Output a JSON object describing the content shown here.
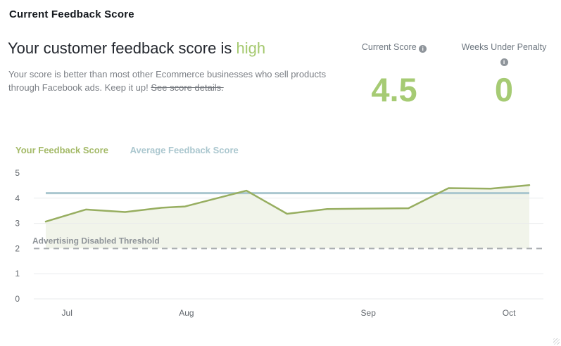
{
  "header": {
    "title": "Current Feedback Score",
    "headline_prefix": "Your customer feedback score is ",
    "headline_status": "high",
    "description_line1": "Your score is better than most other Ecommerce businesses who sell products",
    "description_line2": "through Facebook ads. Keep it up!",
    "details_link": "See score details."
  },
  "stats": [
    {
      "label": "Current Score",
      "value": "4.5"
    },
    {
      "label": "Weeks Under Penalty",
      "value": "0"
    }
  ],
  "icons": {
    "info_glyph": "i"
  },
  "legend": [
    {
      "label": "Your Feedback Score",
      "color": "#a4ba68"
    },
    {
      "label": "Average Feedback Score",
      "color": "#abc7cf"
    }
  ],
  "colors": {
    "accent_green": "#a6cb74",
    "line_green": "#97ae60",
    "area_fill": "rgba(150,173,90,0.13)",
    "line_blue": "#aac7cf",
    "threshold_grey": "#a8acb0",
    "grid_grey": "#e9ebed"
  },
  "chart_data": {
    "type": "line",
    "title": "",
    "xlabel": "",
    "ylabel": "",
    "ylim": [
      0,
      5
    ],
    "y_ticks": [
      5,
      4,
      3,
      2,
      1,
      0
    ],
    "grid_y": [
      4,
      3,
      1,
      0
    ],
    "x_ticks": [
      {
        "label": "Jul",
        "pos": 0.044
      },
      {
        "label": "Aug",
        "pos": 0.291
      },
      {
        "label": "Sep",
        "pos": 0.667
      },
      {
        "label": "Oct",
        "pos": 0.958
      }
    ],
    "legend_position": "top-left",
    "series": [
      {
        "name": "Your Feedback Score",
        "type": "area-line",
        "color": "#97ae60",
        "fill": "rgba(150,173,90,0.13)",
        "points": [
          {
            "x": 0.0,
            "y": 3.07
          },
          {
            "x": 0.083,
            "y": 3.55
          },
          {
            "x": 0.124,
            "y": 3.5
          },
          {
            "x": 0.164,
            "y": 3.45
          },
          {
            "x": 0.24,
            "y": 3.62
          },
          {
            "x": 0.288,
            "y": 3.67
          },
          {
            "x": 0.415,
            "y": 4.3
          },
          {
            "x": 0.499,
            "y": 3.38
          },
          {
            "x": 0.582,
            "y": 3.57
          },
          {
            "x": 0.75,
            "y": 3.6
          },
          {
            "x": 0.833,
            "y": 4.4
          },
          {
            "x": 0.92,
            "y": 4.38
          },
          {
            "x": 1.0,
            "y": 4.52
          }
        ]
      },
      {
        "name": "Average Feedback Score",
        "type": "constant-line",
        "color": "#aac7cf",
        "value": 4.2
      }
    ],
    "threshold": {
      "label": "Advertising Disabled Threshold",
      "value": 2,
      "style": "dashed",
      "color": "#a8acb0"
    }
  }
}
